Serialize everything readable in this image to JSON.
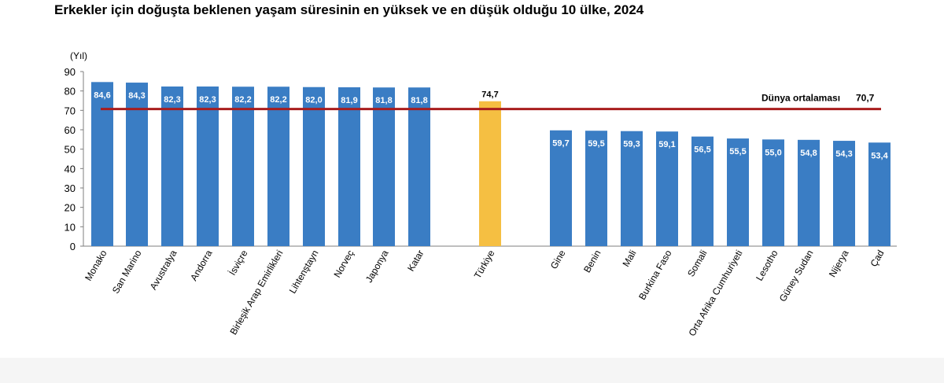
{
  "chart_data": {
    "type": "bar",
    "title": "Erkekler için doğuşta beklenen yaşam süresinin en yüksek ve en düşük olduğu 10 ülke, 2024",
    "ylabel": "(Yıl)",
    "ylim": [
      0,
      90
    ],
    "yticks": [
      0,
      10,
      20,
      30,
      40,
      50,
      60,
      70,
      80,
      90
    ],
    "grid": false,
    "categories": [
      "Monako",
      "San Marino",
      "Avustralya",
      "Andorra",
      "İsviçre",
      "Birleşik Arap Emirlikleri",
      "Lihtenştayn",
      "Norveç",
      "Japonya",
      "Katar",
      "Türkiye",
      "Gine",
      "Benin",
      "Mali",
      "Burkina Faso",
      "Somali",
      "Orta Afrika Cumhuriyeti",
      "Lesotho",
      "Güney Sudan",
      "Nijerya",
      "Çad"
    ],
    "values": [
      84.6,
      84.3,
      82.3,
      82.3,
      82.2,
      82.2,
      82.0,
      81.9,
      81.8,
      81.8,
      74.7,
      59.7,
      59.5,
      59.3,
      59.1,
      56.5,
      55.5,
      55.0,
      54.8,
      54.3,
      53.4
    ],
    "value_labels": [
      "84,6",
      "84,3",
      "82,3",
      "82,3",
      "82,2",
      "82,2",
      "82,0",
      "81,9",
      "81,8",
      "81,8",
      "74,7",
      "59,7",
      "59,5",
      "59,3",
      "59,1",
      "56,5",
      "55,5",
      "55,0",
      "54,8",
      "54,3",
      "53,4"
    ],
    "highlight_category": "Türkiye",
    "reference_line": {
      "label": "Dünya ortalaması",
      "value": 70.7,
      "value_label": "70,7"
    },
    "colors": {
      "bar": "#3a7dc4",
      "highlight": "#f5bf42",
      "reference": "#a81d1d",
      "label_on_bar": "#ffffff",
      "label_above": "#000000"
    }
  }
}
